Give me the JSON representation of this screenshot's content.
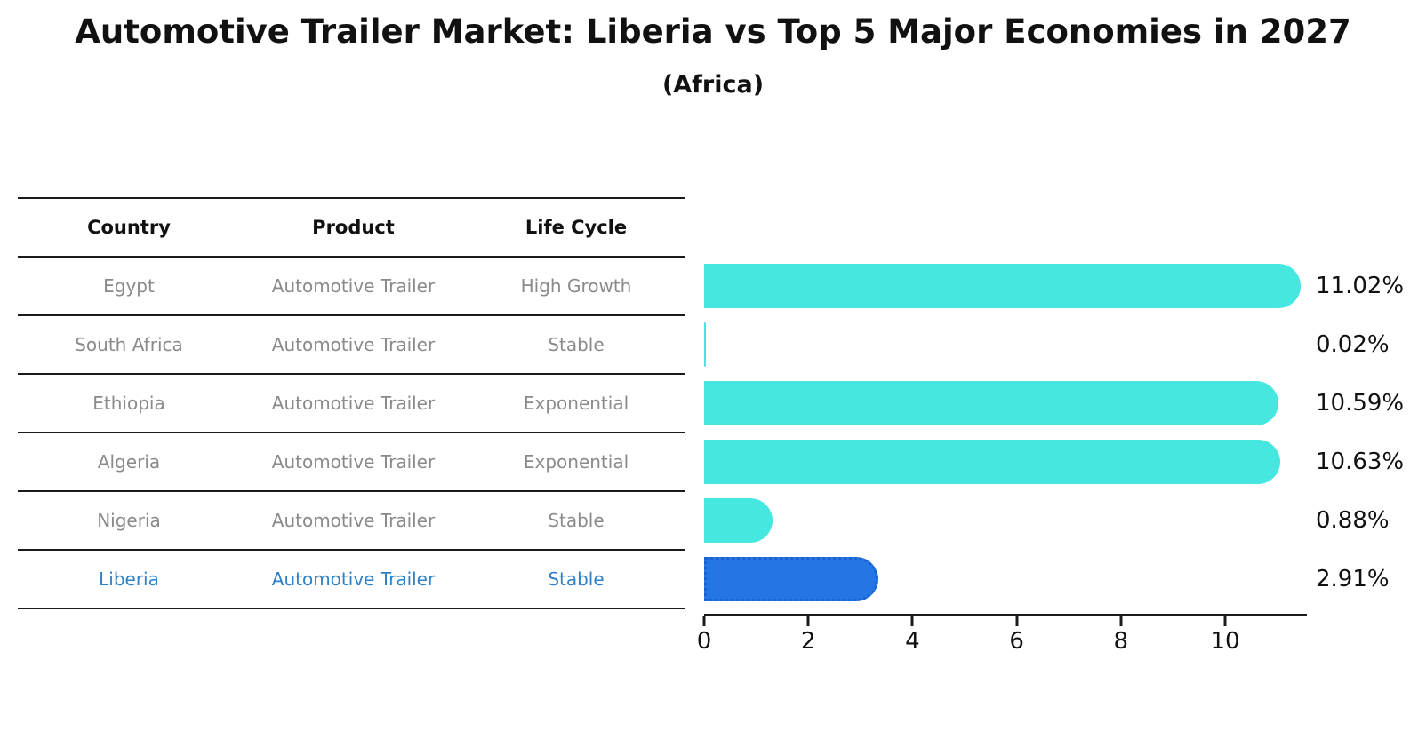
{
  "chart_data": {
    "type": "bar",
    "orientation": "horizontal",
    "title": "Automotive Trailer Market: Liberia vs Top 5 Major Economies in 2027",
    "subtitle": "(Africa)",
    "categories": [
      "Egypt",
      "South Africa",
      "Ethiopia",
      "Algeria",
      "Nigeria",
      "Liberia"
    ],
    "values": [
      11.02,
      0.02,
      10.59,
      10.63,
      0.88,
      2.91
    ],
    "value_labels": [
      "11.02%",
      "0.02%",
      "10.59%",
      "10.63%",
      "0.88%",
      "2.91%"
    ],
    "x_ticks": [
      0,
      2,
      4,
      6,
      8,
      10
    ],
    "xlim": [
      0,
      11.57
    ],
    "xlabel": "",
    "ylabel": "",
    "grid": false,
    "legend": "none",
    "bar_color": "#46E7E1",
    "highlight_index": 5,
    "highlight_color": "#2376E4",
    "highlight_border_color": "#1a62cf",
    "highlight_border_style": "dotted"
  },
  "table": {
    "columns": [
      "Country",
      "Product",
      "Life Cycle"
    ],
    "rows": [
      {
        "country": "Egypt",
        "product": "Automotive Trailer",
        "life_cycle": "High Growth",
        "highlight": false
      },
      {
        "country": "South Africa",
        "product": "Automotive Trailer",
        "life_cycle": "Stable",
        "highlight": false
      },
      {
        "country": "Ethiopia",
        "product": "Automotive Trailer",
        "life_cycle": "Exponential",
        "highlight": false
      },
      {
        "country": "Algeria",
        "product": "Automotive Trailer",
        "life_cycle": "Exponential",
        "highlight": false
      },
      {
        "country": "Nigeria",
        "product": "Automotive Trailer",
        "life_cycle": "Stable",
        "highlight": false
      },
      {
        "country": "Liberia",
        "product": "Automotive Trailer",
        "life_cycle": "Stable",
        "highlight": true
      }
    ]
  },
  "colors": {
    "bar": "#46E7E1",
    "highlight_bar": "#2376E4",
    "highlight_text": "#2f80c6",
    "table_text": "#8a8a8a",
    "heading_text": "#111111",
    "line": "#1b1b1b"
  }
}
